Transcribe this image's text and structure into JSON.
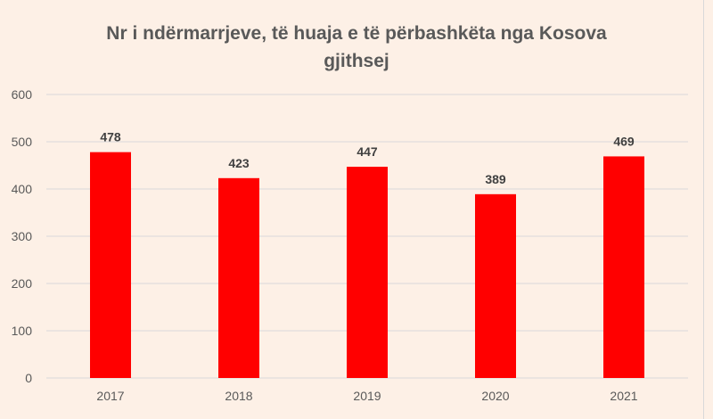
{
  "chart_data": {
    "type": "bar",
    "title_lines": [
      "Nr i ndërmarrjeve, të huaja e të përbashkëta nga Kosova",
      "gjithsej"
    ],
    "categories": [
      "2017",
      "2018",
      "2019",
      "2020",
      "2021"
    ],
    "values": [
      478,
      423,
      447,
      389,
      469
    ],
    "data_labels": [
      "478",
      "423",
      "447",
      "389",
      "469"
    ],
    "yticks": [
      "0",
      "100",
      "200",
      "300",
      "400",
      "500",
      "600"
    ],
    "ylim": [
      0,
      600
    ],
    "xlabel": "",
    "ylabel": "",
    "grid": true,
    "legend": "none",
    "bar_color": "#ff0000",
    "grid_color": "#d9d9d9",
    "text_color": "#595959",
    "label_color": "#404040"
  }
}
